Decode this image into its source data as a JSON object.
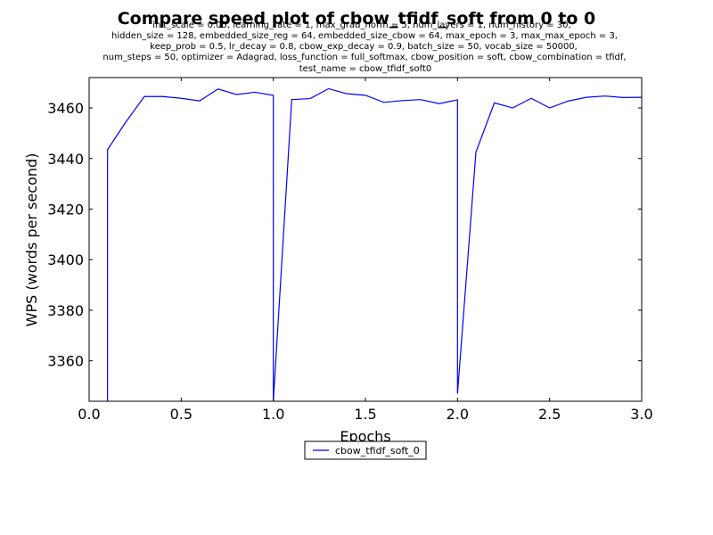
{
  "chart_data": {
    "type": "line",
    "title": "Compare speed plot of cbow_tfidf_soft from 0 to 0",
    "subtitle_lines": [
      "init_scale = 0.05, learning_rate = 1, max_grad_norm = 5, num_layers = 1, num_history = 30,",
      "hidden_size = 128, embedded_size_reg = 64, embedded_size_cbow = 64, max_epoch = 3, max_max_epoch = 3,",
      "keep_prob = 0.5, lr_decay = 0.8, cbow_exp_decay = 0.9, batch_size = 50, vocab_size = 50000,",
      "num_steps = 50, optimizer = Adagrad, loss_function = full_softmax, cbow_position = soft, cbow_combination = tfidf,",
      "test_name = cbow_tfidf_soft0"
    ],
    "xlabel": "Epochs",
    "ylabel": "WPS (words per second)",
    "xlim": [
      0.0,
      3.0
    ],
    "ylim": [
      3344,
      3472
    ],
    "xticks": [
      "0.0",
      "0.5",
      "1.0",
      "1.5",
      "2.0",
      "2.5",
      "3.0"
    ],
    "yticks": [
      "3360",
      "3380",
      "3400",
      "3420",
      "3440",
      "3460"
    ],
    "grid": false,
    "legend_position": "bottom-center",
    "series": [
      {
        "name": "cbow_tfidf_soft_0",
        "color": "#0000ff",
        "x": [
          0.1,
          0.1,
          0.2,
          0.3,
          0.4,
          0.5,
          0.6,
          0.7,
          0.8,
          0.9,
          1.0,
          1.0,
          1.1,
          1.2,
          1.3,
          1.4,
          1.5,
          1.6,
          1.7,
          1.8,
          1.9,
          2.0,
          2.0,
          2.1,
          2.2,
          2.3,
          2.4,
          2.5,
          2.6,
          2.7,
          2.8,
          2.9,
          3.0
        ],
        "y": [
          3344,
          3443.5,
          3454.5,
          3464.5,
          3464.5,
          3463.8,
          3462.8,
          3467.5,
          3465.3,
          3466.2,
          3465,
          3344,
          3463.3,
          3463.7,
          3467.6,
          3465.6,
          3465,
          3462.2,
          3462.9,
          3463.3,
          3461.7,
          3463.2,
          3347,
          3442.5,
          3462,
          3460,
          3463.8,
          3460,
          3462.7,
          3464.2,
          3464.7,
          3464.1,
          3464.2
        ]
      }
    ]
  }
}
